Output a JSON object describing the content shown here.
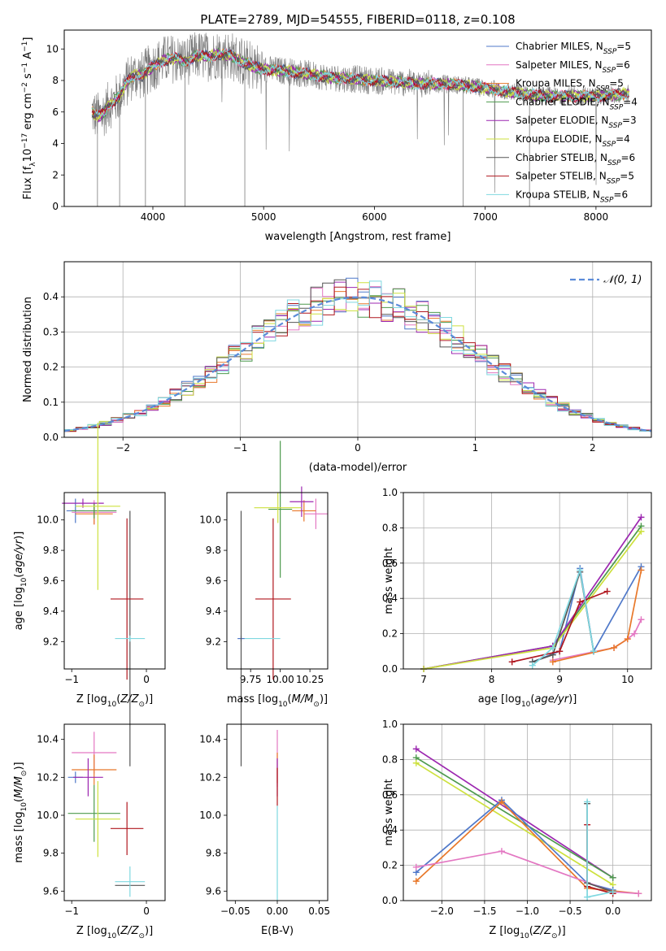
{
  "figure_title": "PLATE=2789, MJD=54555, FIBERID=0118, z=0.108",
  "colors": {
    "Chabrier MILES": "#4f78c9",
    "Salpeter MILES": "#e377c2",
    "Kroupa MILES": "#e8782a",
    "Chabrier ELODIE": "#4d9a4d",
    "Salpeter ELODIE": "#9c27b0",
    "Kroupa ELODIE": "#cde13e",
    "Chabrier STELIB": "#555555",
    "Salpeter STELIB": "#b0171f",
    "Kroupa STELIB": "#7fd8e0"
  },
  "chart_data": [
    {
      "type": "line",
      "xlabel": "wavelength [Angstrom, rest frame]",
      "ylabel": "Flux [fλ10^-17 erg cm^-2 s^-1 A^-1]",
      "xlim": [
        3200,
        8500
      ],
      "ylim": [
        0,
        11.2
      ],
      "xticks": [
        4000,
        5000,
        6000,
        7000,
        8000
      ],
      "yticks": [
        0,
        2,
        4,
        6,
        8,
        10
      ],
      "grid": false,
      "legend_position": "top-right",
      "legend": [
        {
          "name": "Chabrier MILES",
          "nssp": "5"
        },
        {
          "name": "Salpeter MILES",
          "nssp": "6"
        },
        {
          "name": "Kroupa MILES",
          "nssp": "5"
        },
        {
          "name": "Chabrier ELODIE",
          "nssp": "4"
        },
        {
          "name": "Salpeter ELODIE",
          "nssp": "3"
        },
        {
          "name": "Kroupa ELODIE",
          "nssp": "4"
        },
        {
          "name": "Chabrier STELIB",
          "nssp": "6"
        },
        {
          "name": "Salpeter STELIB",
          "nssp": "5"
        },
        {
          "name": "Kroupa STELIB",
          "nssp": "6"
        }
      ],
      "model_envelope": {
        "x": [
          3450,
          3500,
          3550,
          3600,
          3650,
          3700,
          3750,
          3800,
          3850,
          3900,
          3950,
          4000,
          4100,
          4200,
          4300,
          4400,
          4500,
          4600,
          4700,
          4800,
          4900,
          5000,
          5200,
          5400,
          5600,
          5800,
          6000,
          6200,
          6400,
          6600,
          6800,
          7000,
          7200,
          7400,
          7600,
          7800,
          8000,
          8200,
          8300
        ],
        "y": [
          6.0,
          5.7,
          5.9,
          6.4,
          6.7,
          7.0,
          7.7,
          8.2,
          8.4,
          8.3,
          8.6,
          8.9,
          9.3,
          9.4,
          9.2,
          9.6,
          9.5,
          9.7,
          9.6,
          9.2,
          8.9,
          8.7,
          8.6,
          8.4,
          8.2,
          8.1,
          8.0,
          7.9,
          7.8,
          7.8,
          7.7,
          7.5,
          7.3,
          7.1,
          7.0,
          7.0,
          7.0,
          7.1,
          7.2
        ]
      },
      "absorption_lines": [
        3500,
        3700,
        3933,
        4290,
        4830,
        6800,
        7400
      ]
    },
    {
      "type": "bar",
      "xlabel": "(data-model)/error",
      "ylabel": "Normed distribution",
      "xlim": [
        -2.5,
        2.5
      ],
      "ylim": [
        0,
        0.5
      ],
      "xticks": [
        -2,
        -1,
        0,
        1,
        2
      ],
      "yticks": [
        0.0,
        0.1,
        0.2,
        0.3,
        0.4
      ],
      "grid": true,
      "legend_position": "top-right",
      "legend": [
        {
          "name": "N(0,1)",
          "style": "dashed"
        }
      ],
      "bin_width": 0.1,
      "gaussian": {
        "mean": 0,
        "sigma": 1
      }
    },
    {
      "type": "scatter",
      "xlabel": "Z [log10(Z/Z_sun)]",
      "ylabel": "age  [log10(age/yr)]",
      "xlim": [
        -1.1,
        0.25
      ],
      "ylim": [
        9.02,
        10.18
      ],
      "xticks": [
        -1,
        0
      ],
      "yticks": [
        9.2,
        9.4,
        9.6,
        9.8,
        10.0
      ],
      "points": [
        {
          "model": "Chabrier MILES",
          "x": -0.95,
          "y": 10.06,
          "xerr": 0.12,
          "yerr": 0.08
        },
        {
          "model": "Salpeter MILES",
          "x": -0.7,
          "y": 10.05,
          "xerr": 0.3,
          "yerr": 0.08
        },
        {
          "model": "Kroupa MILES",
          "x": -0.7,
          "y": 10.04,
          "xerr": 0.25,
          "yerr": 0.07
        },
        {
          "model": "Chabrier ELODIE",
          "x": -0.7,
          "y": 10.06,
          "xerr": 0.3,
          "yerr": 0.05
        },
        {
          "model": "Salpeter ELODIE",
          "x": -0.85,
          "y": 10.11,
          "xerr": 0.28,
          "yerr": 0.03
        },
        {
          "model": "Kroupa ELODIE",
          "x": -0.65,
          "y": 10.09,
          "xerr": 0.3,
          "yerr": 0.55
        },
        {
          "model": "Chabrier STELIB",
          "x": -0.22,
          "y": 9.22,
          "xerr": 0.0,
          "yerr": 0.84
        },
        {
          "model": "Salpeter STELIB",
          "x": -0.26,
          "y": 9.48,
          "xerr": 0.22,
          "yerr": 0.53
        },
        {
          "model": "Kroupa STELIB",
          "x": -0.22,
          "y": 9.22,
          "xerr": 0.2,
          "yerr": 0.02
        }
      ]
    },
    {
      "type": "scatter",
      "xlabel": "mass [log10(M/M_sun)]",
      "ylabel": "",
      "xlim": [
        9.55,
        10.4
      ],
      "ylim": [
        9.02,
        10.18
      ],
      "xticks": [
        9.75,
        10.0,
        10.25
      ],
      "xticklabels": [
        "9.75",
        "10.00",
        "10.25"
      ],
      "yticks": [
        9.2,
        9.4,
        9.6,
        9.8,
        10.0
      ],
      "points": [
        {
          "model": "Chabrier MILES",
          "x": 9.67,
          "y": 9.22,
          "xerr": 0.03,
          "yerr": 0.02
        },
        {
          "model": "Salpeter MILES",
          "x": 10.3,
          "y": 10.04,
          "xerr": 0.1,
          "yerr": 0.1
        },
        {
          "model": "Kroupa MILES",
          "x": 10.2,
          "y": 10.06,
          "xerr": 0.1,
          "yerr": 0.07
        },
        {
          "model": "Chabrier ELODIE",
          "x": 10.0,
          "y": 10.07,
          "xerr": 0.1,
          "yerr": 0.45
        },
        {
          "model": "Salpeter ELODIE",
          "x": 10.18,
          "y": 10.12,
          "xerr": 0.1,
          "yerr": 0.1
        },
        {
          "model": "Kroupa ELODIE",
          "x": 9.98,
          "y": 10.08,
          "xerr": 0.2,
          "yerr": 0.1
        },
        {
          "model": "Chabrier STELIB",
          "x": 9.67,
          "y": 9.22,
          "xerr": 0.0,
          "yerr": 0.84
        },
        {
          "model": "Salpeter STELIB",
          "x": 9.94,
          "y": 9.48,
          "xerr": 0.15,
          "yerr": 0.53
        },
        {
          "model": "Kroupa STELIB",
          "x": 9.85,
          "y": 9.22,
          "xerr": 0.15,
          "yerr": 0.0
        }
      ]
    },
    {
      "type": "line",
      "xlabel": "age  [log10(age/yr)]",
      "ylabel": "mass weight",
      "xlim": [
        6.7,
        10.35
      ],
      "ylim": [
        0,
        1.0
      ],
      "xticks": [
        7,
        8,
        9,
        10
      ],
      "yticks": [
        0.0,
        0.2,
        0.4,
        0.6,
        0.8,
        1.0
      ],
      "grid": true,
      "series": [
        {
          "model": "Chabrier MILES",
          "x": [
            8.6,
            9.0,
            9.3,
            9.5,
            10.2
          ],
          "y": [
            0.04,
            0.1,
            0.57,
            0.1,
            0.58
          ]
        },
        {
          "model": "Salpeter MILES",
          "x": [
            8.9,
            9.8,
            10.0,
            10.1,
            10.2
          ],
          "y": [
            0.05,
            0.12,
            0.17,
            0.2,
            0.28
          ]
        },
        {
          "model": "Kroupa MILES",
          "x": [
            8.9,
            9.8,
            10.0,
            10.2
          ],
          "y": [
            0.04,
            0.12,
            0.17,
            0.56
          ]
        },
        {
          "model": "Chabrier ELODIE",
          "x": [
            7.0,
            8.9,
            10.2
          ],
          "y": [
            0.0,
            0.13,
            0.81
          ]
        },
        {
          "model": "Salpeter ELODIE",
          "x": [
            7.0,
            8.9,
            10.2
          ],
          "y": [
            0.0,
            0.13,
            0.86
          ]
        },
        {
          "model": "Kroupa ELODIE",
          "x": [
            7.0,
            8.9,
            10.2
          ],
          "y": [
            0.0,
            0.12,
            0.78
          ]
        },
        {
          "model": "Chabrier STELIB",
          "x": [
            8.6,
            8.9,
            9.3,
            9.5
          ],
          "y": [
            0.04,
            0.08,
            0.55,
            0.1
          ]
        },
        {
          "model": "Salpeter STELIB",
          "x": [
            8.3,
            9.0,
            9.3,
            9.7
          ],
          "y": [
            0.04,
            0.1,
            0.38,
            0.44
          ]
        },
        {
          "model": "Kroupa STELIB",
          "x": [
            8.6,
            8.9,
            9.3,
            9.5
          ],
          "y": [
            0.02,
            0.12,
            0.56,
            0.1
          ]
        }
      ]
    },
    {
      "type": "scatter",
      "xlabel": "Z [log10(Z/Z_sun)]",
      "ylabel": "mass [log10(M/M_sun)]",
      "xlim": [
        -1.1,
        0.25
      ],
      "ylim": [
        9.55,
        10.48
      ],
      "xticks": [
        -1,
        0
      ],
      "yticks": [
        9.6,
        9.8,
        10.0,
        10.2,
        10.4
      ],
      "points": [
        {
          "model": "Chabrier MILES",
          "x": -0.95,
          "y": 10.2,
          "xerr": 0.1,
          "yerr": 0.03
        },
        {
          "model": "Salpeter MILES",
          "x": -0.7,
          "y": 10.33,
          "xerr": 0.3,
          "yerr": 0.11
        },
        {
          "model": "Kroupa MILES",
          "x": -0.7,
          "y": 10.24,
          "xerr": 0.3,
          "yerr": 0.08
        },
        {
          "model": "Chabrier ELODIE",
          "x": -0.7,
          "y": 10.01,
          "xerr": 0.35,
          "yerr": 0.15
        },
        {
          "model": "Salpeter ELODIE",
          "x": -0.78,
          "y": 10.2,
          "xerr": 0.2,
          "yerr": 0.1
        },
        {
          "model": "Kroupa ELODIE",
          "x": -0.65,
          "y": 9.98,
          "xerr": 0.3,
          "yerr": 0.2
        },
        {
          "model": "Chabrier STELIB",
          "x": -0.22,
          "y": 9.63,
          "xerr": 0.2,
          "yerr": 0.0
        },
        {
          "model": "Salpeter STELIB",
          "x": -0.26,
          "y": 9.93,
          "xerr": 0.22,
          "yerr": 0.14
        },
        {
          "model": "Kroupa STELIB",
          "x": -0.22,
          "y": 9.65,
          "xerr": 0.2,
          "yerr": 0.08
        }
      ]
    },
    {
      "type": "scatter",
      "xlabel": "E(B-V)",
      "ylabel": "",
      "xlim": [
        -0.06,
        0.06
      ],
      "ylim": [
        9.55,
        10.48
      ],
      "xticks": [
        -0.05,
        0.0,
        0.05
      ],
      "xticklabels": [
        "−0.05",
        "0.00",
        "0.05"
      ],
      "yticks": [
        9.6,
        9.8,
        10.0,
        10.2,
        10.4
      ],
      "points": [
        {
          "model": "Salpeter MILES",
          "x": 0.0,
          "y": 10.3,
          "xerr": 0.0,
          "yerr": 0.15
        },
        {
          "model": "Kroupa MILES",
          "x": 0.0,
          "y": 10.25,
          "xerr": 0.0,
          "yerr": 0.08
        },
        {
          "model": "Salpeter ELODIE",
          "x": 0.0,
          "y": 10.2,
          "xerr": 0.0,
          "yerr": 0.1
        },
        {
          "model": "Salpeter STELIB",
          "x": 0.0,
          "y": 10.15,
          "xerr": 0.0,
          "yerr": 0.1
        },
        {
          "model": "Kroupa STELIB",
          "x": 0.0,
          "y": 9.8,
          "xerr": 0.0,
          "yerr": 0.25
        }
      ]
    },
    {
      "type": "line",
      "xlabel": "Z [log10(Z/Z_sun)]",
      "ylabel": "mass weight",
      "xlim": [
        -2.45,
        0.45
      ],
      "ylim": [
        0,
        1.0
      ],
      "xticks": [
        -2.0,
        -1.5,
        -1.0,
        -0.5,
        0.0
      ],
      "xticklabels": [
        "−2.0",
        "−1.5",
        "−1.0",
        "−0.5",
        "0.0"
      ],
      "yticks": [
        0.0,
        0.2,
        0.4,
        0.6,
        0.8,
        1.0
      ],
      "grid": true,
      "series": [
        {
          "model": "Salpeter ELODIE",
          "x": [
            -2.3,
            0.0
          ],
          "y": [
            0.86,
            0.13
          ]
        },
        {
          "model": "Chabrier ELODIE",
          "x": [
            -2.3,
            0.0
          ],
          "y": [
            0.81,
            0.13
          ]
        },
        {
          "model": "Kroupa ELODIE",
          "x": [
            -2.3,
            0.0
          ],
          "y": [
            0.78,
            0.09
          ]
        },
        {
          "model": "Chabrier MILES",
          "x": [
            -2.3,
            -1.3,
            -0.3,
            0.0
          ],
          "y": [
            0.16,
            0.57,
            0.1,
            0.06
          ]
        },
        {
          "model": "Kroupa MILES",
          "x": [
            -2.3,
            -1.3,
            -0.3,
            0.3
          ],
          "y": [
            0.11,
            0.56,
            0.07,
            0.04
          ]
        },
        {
          "model": "Salpeter MILES",
          "x": [
            -2.3,
            -1.3,
            0.0,
            0.3
          ],
          "y": [
            0.19,
            0.28,
            0.05,
            0.04
          ]
        },
        {
          "model": "Chabrier STELIB",
          "x": [
            -0.3,
            -0.3,
            0.0
          ],
          "y": [
            0.55,
            0.1,
            0.05
          ]
        },
        {
          "model": "Salpeter STELIB",
          "x": [
            -0.3,
            -0.3,
            0.0
          ],
          "y": [
            0.43,
            0.08,
            0.04
          ]
        },
        {
          "model": "Kroupa STELIB",
          "x": [
            -0.3,
            -0.3,
            0.0
          ],
          "y": [
            0.56,
            0.02,
            0.05
          ]
        }
      ]
    }
  ]
}
